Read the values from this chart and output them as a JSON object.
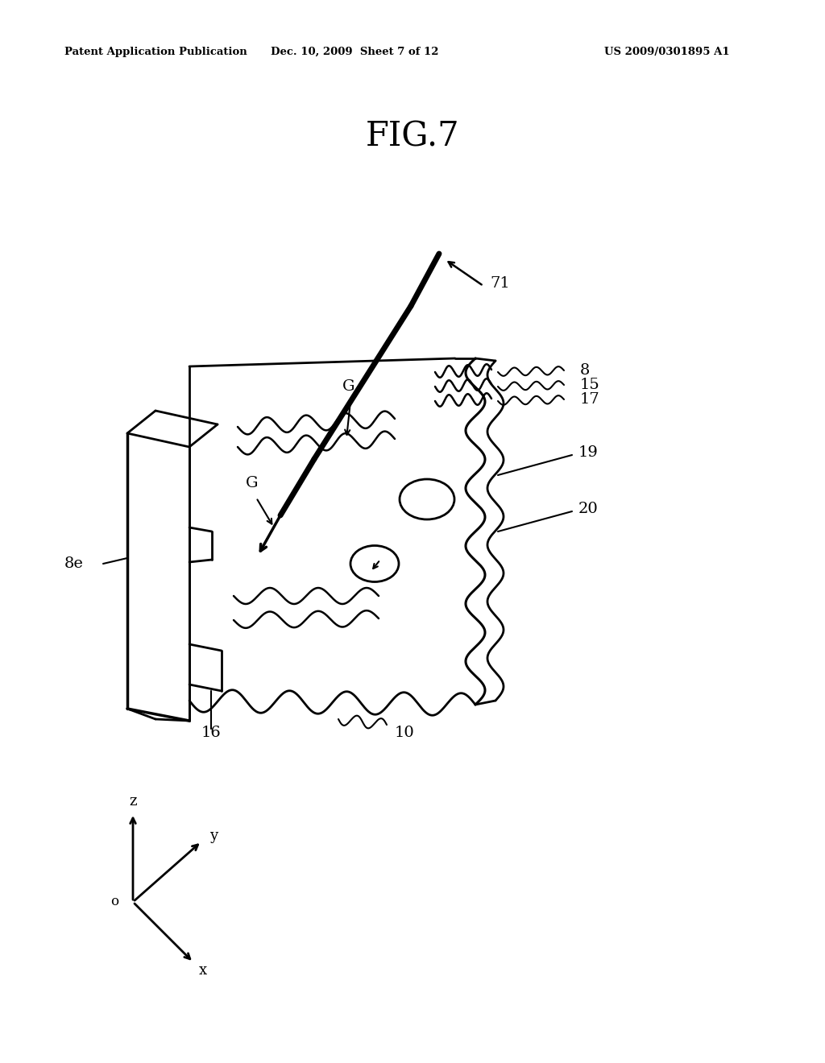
{
  "title": "FIG.7",
  "header_left": "Patent Application Publication",
  "header_mid": "Dec. 10, 2009  Sheet 7 of 12",
  "header_right": "US 2009/0301895 A1",
  "bg_color": "#ffffff",
  "line_color": "#000000",
  "fig_width": 10.24,
  "fig_height": 13.2,
  "dpi": 100
}
